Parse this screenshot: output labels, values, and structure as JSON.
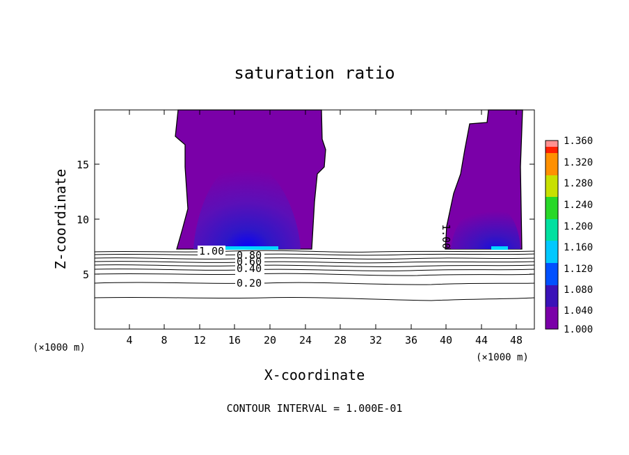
{
  "chart_data": {
    "type": "heatmap",
    "title": "saturation ratio",
    "xlabel": "X-coordinate",
    "ylabel": "Z-coordinate",
    "x_unit": "(×1000 m)",
    "xlim": [
      0,
      50
    ],
    "ylim": [
      0,
      20
    ],
    "x_ticks": [
      "4",
      "8",
      "12",
      "16",
      "20",
      "24",
      "28",
      "32",
      "36",
      "40",
      "44",
      "48"
    ],
    "y_ticks": [
      "5",
      "10",
      "15"
    ],
    "footer": "CONTOUR INTERVAL = 1.000E-01",
    "colorbar": {
      "levels": [
        "1.000",
        "1.040",
        "1.080",
        "1.120",
        "1.160",
        "1.200",
        "1.240",
        "1.280",
        "1.320",
        "1.360"
      ],
      "colors": [
        "#7a00a8",
        "#3a12b8",
        "#0050ff",
        "#00c8ff",
        "#00e0a0",
        "#28d828",
        "#c8e000",
        "#ff9000",
        "#ff2000",
        "#ff9090"
      ]
    },
    "contour_labels": [
      {
        "text": "1.00",
        "x": 13.0,
        "z": 7.0
      },
      {
        "text": "0.80",
        "x": 17.5,
        "z": 6.6
      },
      {
        "text": "0.60",
        "x": 17.5,
        "z": 6.2
      },
      {
        "text": "0.40",
        "x": 17.5,
        "z": 5.5
      },
      {
        "text": "0.20",
        "x": 17.5,
        "z": 4.2
      },
      {
        "text": "1.00",
        "x": 40.0,
        "z": 8.5
      }
    ],
    "supersaturated_regions": [
      {
        "x_range": [
          9.5,
          24.5
        ],
        "z_range": [
          7.2,
          20
        ],
        "min": 1.0,
        "max": 1.12,
        "core_x": 17.0
      },
      {
        "x_range": [
          39.5,
          48.5
        ],
        "z_range": [
          7.2,
          20
        ],
        "min": 1.0,
        "max": 1.12,
        "core_x": 45.5
      }
    ],
    "contour_levels_below": [
      {
        "value": "0.20",
        "z": 4.2
      },
      {
        "value": "0.10",
        "z": 2.8
      }
    ]
  }
}
